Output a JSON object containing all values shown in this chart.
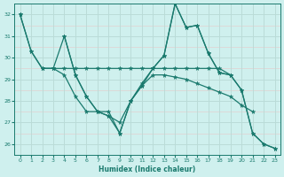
{
  "xlabel": "Humidex (Indice chaleur)",
  "bg_color": "#cff0ee",
  "line_color": "#1a7a6e",
  "grid_color": "#b8ddd9",
  "xlim": [
    -0.5,
    23.5
  ],
  "ylim": [
    25.5,
    32.5
  ],
  "yticks": [
    26,
    27,
    28,
    29,
    30,
    31,
    32
  ],
  "xticks": [
    0,
    1,
    2,
    3,
    4,
    5,
    6,
    7,
    8,
    9,
    10,
    11,
    12,
    13,
    14,
    15,
    16,
    17,
    18,
    19,
    20,
    21,
    22,
    23
  ],
  "line1_x": [
    0,
    1,
    2,
    3,
    4,
    5,
    6,
    7,
    8,
    9,
    10,
    11,
    12,
    13,
    14,
    15,
    16,
    17,
    18,
    19
  ],
  "line1_y": [
    32.0,
    30.3,
    29.5,
    29.5,
    29.5,
    29.5,
    29.5,
    29.5,
    29.5,
    29.5,
    29.5,
    29.5,
    29.5,
    29.5,
    29.5,
    29.5,
    29.5,
    29.5,
    29.5,
    29.2
  ],
  "line2_x": [
    2,
    3,
    4,
    5,
    6,
    7,
    8,
    9,
    10,
    11,
    12,
    13,
    14,
    15,
    16,
    17,
    18,
    19,
    20,
    21
  ],
  "line2_y": [
    29.5,
    29.5,
    29.2,
    28.2,
    27.5,
    27.5,
    27.3,
    27.0,
    28.0,
    28.7,
    29.2,
    29.2,
    29.1,
    29.0,
    28.8,
    28.6,
    28.4,
    28.2,
    27.8,
    27.5
  ],
  "line3_x": [
    0,
    1,
    2,
    3,
    4,
    5,
    6,
    7,
    8,
    9,
    10,
    11,
    12,
    13,
    14,
    15,
    16,
    17,
    18,
    19,
    20,
    21,
    22,
    23
  ],
  "line3_y": [
    32.0,
    30.3,
    29.5,
    29.5,
    31.0,
    29.2,
    28.2,
    27.5,
    27.5,
    26.5,
    28.0,
    28.7,
    29.5,
    30.1,
    32.5,
    31.4,
    31.5,
    30.2,
    29.3,
    29.2,
    28.5,
    26.5,
    26.0,
    25.8
  ],
  "line4_x": [
    4,
    5,
    6,
    7,
    8,
    9,
    10,
    11,
    12,
    13,
    14,
    15,
    16,
    17,
    18,
    19,
    20,
    21,
    22,
    23
  ],
  "line4_y": [
    31.0,
    29.2,
    28.2,
    27.5,
    27.3,
    26.5,
    28.0,
    28.8,
    29.5,
    30.1,
    32.5,
    31.4,
    31.5,
    30.2,
    29.3,
    29.2,
    28.5,
    26.5,
    26.0,
    25.8
  ]
}
